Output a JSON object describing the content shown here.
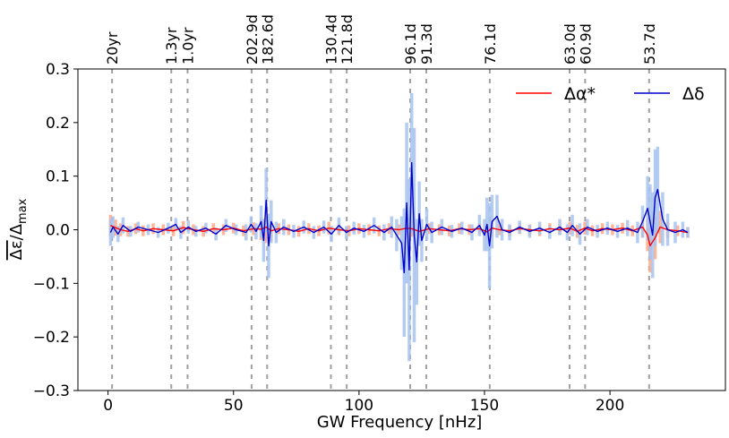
{
  "chart_data": {
    "type": "line",
    "xlabel": "GW Frequency [nHz]",
    "ylabel": "Δε̄/Δmax",
    "xlim": [
      -12,
      246
    ],
    "ylim": [
      -0.3,
      0.3
    ],
    "xticks": [
      0,
      50,
      100,
      150,
      200
    ],
    "yticks": [
      -0.3,
      -0.2,
      -0.1,
      0.0,
      0.1,
      0.2,
      0.3
    ],
    "ytick_labels": [
      "−0.3",
      "−0.2",
      "−0.1",
      "0.0",
      "0.1",
      "0.2",
      "0.3"
    ],
    "grid": false,
    "legend_position": "top-right",
    "vertical_markers": [
      {
        "x": 1.6,
        "label": "20yr"
      },
      {
        "x": 25.2,
        "label": "1.3yr"
      },
      {
        "x": 31.7,
        "label": "1.0yr"
      },
      {
        "x": 57.2,
        "label": "202.9d"
      },
      {
        "x": 63.4,
        "label": "182.6d"
      },
      {
        "x": 88.8,
        "label": "130.4d"
      },
      {
        "x": 95.1,
        "label": "121.8d"
      },
      {
        "x": 120.4,
        "label": "96.1d"
      },
      {
        "x": 126.8,
        "label": "91.3d"
      },
      {
        "x": 152.1,
        "label": "76.1d"
      },
      {
        "x": 183.9,
        "label": "63.0d"
      },
      {
        "x": 190.1,
        "label": "60.9d"
      },
      {
        "x": 215.6,
        "label": "53.7d"
      }
    ],
    "series": [
      {
        "name": "Δα*",
        "color": "#ff0000",
        "errorbar_color": "#ffa985",
        "points": [
          [
            1,
            0.008,
            0.02
          ],
          [
            3,
            0.004,
            0.015
          ],
          [
            5,
            0.0,
            0.012
          ],
          [
            8,
            -0.003,
            0.01
          ],
          [
            11,
            0.002,
            0.01
          ],
          [
            14,
            -0.002,
            0.01
          ],
          [
            18,
            0.002,
            0.01
          ],
          [
            22,
            0.0,
            0.01
          ],
          [
            26,
            -0.002,
            0.01
          ],
          [
            30,
            0.004,
            0.012
          ],
          [
            34,
            0.0,
            0.01
          ],
          [
            38,
            -0.003,
            0.01
          ],
          [
            42,
            0.002,
            0.01
          ],
          [
            46,
            0.0,
            0.01
          ],
          [
            50,
            0.003,
            0.01
          ],
          [
            54,
            -0.002,
            0.01
          ],
          [
            58,
            0.002,
            0.012
          ],
          [
            61,
            0.001,
            0.02
          ],
          [
            63,
            0.005,
            0.03
          ],
          [
            65,
            -0.002,
            0.02
          ],
          [
            68,
            0.002,
            0.01
          ],
          [
            72,
            0.0,
            0.01
          ],
          [
            76,
            -0.003,
            0.01
          ],
          [
            80,
            0.002,
            0.01
          ],
          [
            84,
            -0.002,
            0.01
          ],
          [
            88,
            0.003,
            0.012
          ],
          [
            92,
            0.0,
            0.01
          ],
          [
            96,
            -0.002,
            0.01
          ],
          [
            100,
            0.002,
            0.01
          ],
          [
            104,
            0.0,
            0.01
          ],
          [
            108,
            -0.002,
            0.01
          ],
          [
            112,
            0.002,
            0.01
          ],
          [
            116,
            0.0,
            0.01
          ],
          [
            119,
            0.003,
            0.012
          ],
          [
            121,
            0.002,
            0.015
          ],
          [
            124,
            -0.003,
            0.012
          ],
          [
            128,
            0.002,
            0.01
          ],
          [
            132,
            0.0,
            0.01
          ],
          [
            136,
            -0.002,
            0.01
          ],
          [
            140,
            0.002,
            0.01
          ],
          [
            144,
            0.0,
            0.01
          ],
          [
            148,
            0.002,
            0.01
          ],
          [
            151,
            -0.004,
            0.015
          ],
          [
            153,
            0.003,
            0.015
          ],
          [
            156,
            0.0,
            0.01
          ],
          [
            160,
            -0.002,
            0.01
          ],
          [
            164,
            0.002,
            0.01
          ],
          [
            168,
            0.0,
            0.01
          ],
          [
            172,
            -0.002,
            0.01
          ],
          [
            176,
            0.002,
            0.01
          ],
          [
            180,
            0.0,
            0.01
          ],
          [
            184,
            0.003,
            0.012
          ],
          [
            187,
            -0.003,
            0.012
          ],
          [
            190,
            0.003,
            0.012
          ],
          [
            193,
            -0.002,
            0.01
          ],
          [
            197,
            0.002,
            0.01
          ],
          [
            201,
            0.0,
            0.01
          ],
          [
            205,
            0.003,
            0.01
          ],
          [
            209,
            -0.002,
            0.01
          ],
          [
            213,
            0.005,
            0.02
          ],
          [
            215,
            -0.01,
            0.03
          ],
          [
            216,
            -0.03,
            0.05
          ],
          [
            218,
            -0.015,
            0.04
          ],
          [
            220,
            0.005,
            0.03
          ],
          [
            223,
            0.0,
            0.015
          ],
          [
            227,
            -0.002,
            0.01
          ],
          [
            231,
            -0.005,
            0.01
          ]
        ]
      },
      {
        "name": "Δδ",
        "color": "#0000cc",
        "errorbar_color": "#a8c4f0",
        "points": [
          [
            1,
            -0.005,
            0.025
          ],
          [
            2,
            0.005,
            0.02
          ],
          [
            4,
            -0.008,
            0.015
          ],
          [
            6,
            0.008,
            0.015
          ],
          [
            9,
            -0.003,
            0.01
          ],
          [
            12,
            0.005,
            0.01
          ],
          [
            16,
            0.0,
            0.01
          ],
          [
            20,
            -0.005,
            0.01
          ],
          [
            24,
            0.003,
            0.01
          ],
          [
            27,
            0.01,
            0.012
          ],
          [
            29,
            -0.005,
            0.012
          ],
          [
            32,
            0.005,
            0.012
          ],
          [
            35,
            -0.003,
            0.01
          ],
          [
            39,
            0.003,
            0.01
          ],
          [
            43,
            -0.008,
            0.012
          ],
          [
            47,
            0.008,
            0.012
          ],
          [
            51,
            0.0,
            0.01
          ],
          [
            55,
            -0.005,
            0.015
          ],
          [
            57,
            0.01,
            0.015
          ],
          [
            59,
            -0.003,
            0.015
          ],
          [
            61,
            0.015,
            0.03
          ],
          [
            62,
            -0.02,
            0.04
          ],
          [
            63,
            0.055,
            0.06
          ],
          [
            64,
            -0.03,
            0.06
          ],
          [
            65,
            0.015,
            0.04
          ],
          [
            67,
            -0.005,
            0.02
          ],
          [
            70,
            0.005,
            0.015
          ],
          [
            74,
            -0.003,
            0.012
          ],
          [
            78,
            0.005,
            0.012
          ],
          [
            82,
            -0.005,
            0.012
          ],
          [
            86,
            0.005,
            0.012
          ],
          [
            89,
            -0.008,
            0.015
          ],
          [
            92,
            0.008,
            0.015
          ],
          [
            95,
            -0.005,
            0.012
          ],
          [
            98,
            0.003,
            0.012
          ],
          [
            102,
            -0.003,
            0.012
          ],
          [
            106,
            0.008,
            0.015
          ],
          [
            110,
            -0.005,
            0.015
          ],
          [
            113,
            0.005,
            0.02
          ],
          [
            115,
            -0.01,
            0.03
          ],
          [
            117,
            -0.025,
            0.05
          ],
          [
            118,
            -0.08,
            0.12
          ],
          [
            119,
            0.05,
            0.15
          ],
          [
            120,
            -0.075,
            0.17
          ],
          [
            121,
            0.125,
            0.13
          ],
          [
            122,
            -0.01,
            0.2
          ],
          [
            123,
            -0.06,
            0.08
          ],
          [
            124,
            0.03,
            0.06
          ],
          [
            125,
            -0.02,
            0.04
          ],
          [
            127,
            0.01,
            0.03
          ],
          [
            129,
            -0.005,
            0.02
          ],
          [
            133,
            0.005,
            0.015
          ],
          [
            137,
            -0.003,
            0.012
          ],
          [
            141,
            0.003,
            0.012
          ],
          [
            145,
            -0.005,
            0.015
          ],
          [
            148,
            0.008,
            0.02
          ],
          [
            150,
            -0.01,
            0.03
          ],
          [
            151,
            0.01,
            0.05
          ],
          [
            152,
            -0.03,
            0.08
          ],
          [
            153,
            0.015,
            0.05
          ],
          [
            155,
            0.025,
            0.04
          ],
          [
            157,
            0.0,
            0.02
          ],
          [
            160,
            -0.005,
            0.015
          ],
          [
            164,
            0.005,
            0.012
          ],
          [
            168,
            -0.003,
            0.012
          ],
          [
            172,
            0.003,
            0.012
          ],
          [
            176,
            -0.005,
            0.012
          ],
          [
            180,
            0.005,
            0.015
          ],
          [
            183,
            -0.005,
            0.015
          ],
          [
            185,
            0.008,
            0.02
          ],
          [
            188,
            -0.008,
            0.02
          ],
          [
            191,
            0.005,
            0.015
          ],
          [
            195,
            -0.003,
            0.012
          ],
          [
            199,
            0.003,
            0.012
          ],
          [
            203,
            -0.003,
            0.012
          ],
          [
            207,
            0.003,
            0.015
          ],
          [
            211,
            -0.005,
            0.02
          ],
          [
            213,
            0.015,
            0.03
          ],
          [
            215,
            0.04,
            0.06
          ],
          [
            216,
            0.015,
            0.07
          ],
          [
            217,
            -0.01,
            0.08
          ],
          [
            218,
            0.06,
            0.09
          ],
          [
            219,
            0.075,
            0.08
          ],
          [
            221,
            0.02,
            0.05
          ],
          [
            223,
            0.0,
            0.03
          ],
          [
            226,
            -0.005,
            0.02
          ],
          [
            229,
            0.0,
            0.015
          ],
          [
            231,
            -0.005,
            0.01
          ]
        ]
      }
    ]
  }
}
